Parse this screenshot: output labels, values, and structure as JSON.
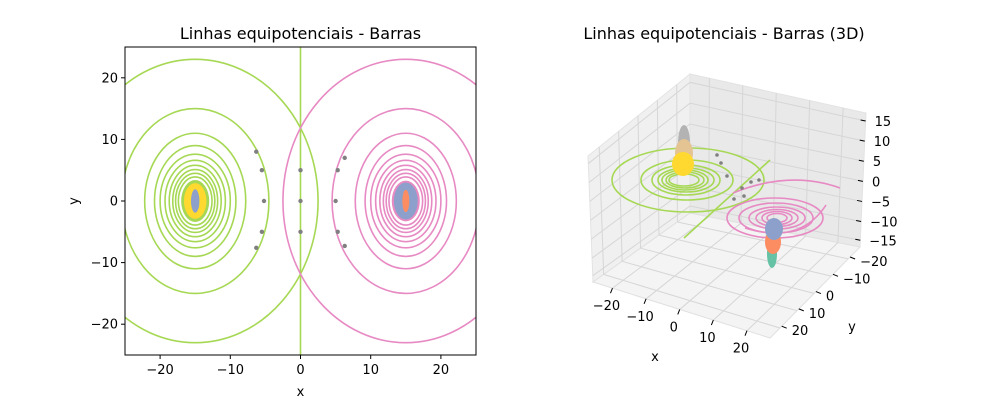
{
  "colors": {
    "left_bar": "#a6d854",
    "right_bar": "#e78ac3",
    "inner_left": "#ffd92f",
    "inner_right": "#8da0cb",
    "grey": "#808080",
    "pane": "#f2f2f2",
    "pane_grid": "#d9d9d9"
  },
  "chart_data": [
    {
      "type": "contour",
      "title": "Linhas equipotenciais - Barras",
      "xlabel": "x",
      "ylabel": "y",
      "xlim": [
        -25,
        25
      ],
      "ylim": [
        -25,
        25
      ],
      "xticks": [
        "−20",
        "−10",
        "0",
        "10",
        "20"
      ],
      "yticks": [
        "−20",
        "−10",
        "0",
        "10",
        "20"
      ],
      "xtick_values": [
        -20,
        -10,
        0,
        10,
        20
      ],
      "ytick_values": [
        -20,
        -10,
        0,
        10,
        20
      ],
      "bars": [
        {
          "center": [
            -15,
            0
          ],
          "color": "#a6d854"
        },
        {
          "center": [
            15,
            0
          ],
          "color": "#e78ac3"
        }
      ],
      "contour_ellipses_left": [
        {
          "a": 17.5,
          "b": 23
        },
        {
          "a": 10.5,
          "b": 15
        },
        {
          "a": 7.2,
          "b": 11
        },
        {
          "a": 5.8,
          "b": 9
        },
        {
          "a": 5.0,
          "b": 7.6
        },
        {
          "a": 4.3,
          "b": 6.6
        },
        {
          "a": 3.7,
          "b": 5.8
        },
        {
          "a": 3.2,
          "b": 5.1
        },
        {
          "a": 2.8,
          "b": 4.5
        },
        {
          "a": 2.4,
          "b": 3.9
        }
      ],
      "contour_ellipses_right": [
        {
          "a": 17.5,
          "b": 23
        },
        {
          "a": 10.5,
          "b": 15
        },
        {
          "a": 7.2,
          "b": 11
        },
        {
          "a": 5.8,
          "b": 9
        },
        {
          "a": 5.0,
          "b": 7.6
        },
        {
          "a": 4.3,
          "b": 6.6
        },
        {
          "a": 3.7,
          "b": 5.8
        },
        {
          "a": 3.2,
          "b": 5.1
        },
        {
          "a": 2.8,
          "b": 4.5
        },
        {
          "a": 2.4,
          "b": 3.9
        }
      ],
      "grey_points": [
        [
          -6.3,
          8
        ],
        [
          -5.5,
          5
        ],
        [
          -5.2,
          0
        ],
        [
          -5.5,
          -5
        ],
        [
          -6.3,
          -7.6
        ],
        [
          0,
          5
        ],
        [
          0,
          0
        ],
        [
          0,
          -5
        ],
        [
          6.3,
          7
        ],
        [
          5.3,
          5
        ],
        [
          5.0,
          0
        ],
        [
          5.3,
          -5
        ],
        [
          6.3,
          -7.3
        ]
      ]
    },
    {
      "type": "3d-contour",
      "title": "Linhas equipotenciais - Barras (3D)",
      "xlabel": "x",
      "ylabel": "y",
      "xticks": [
        "−20",
        "−10",
        "0",
        "10",
        "20"
      ],
      "yticks": [
        "−20",
        "−10",
        "0",
        "10",
        "20"
      ],
      "zticks": [
        "15",
        "10",
        "5",
        "0",
        "−5",
        "−10",
        "−15"
      ],
      "xtick_values": [
        -20,
        -10,
        0,
        10,
        20
      ],
      "ytick_values": [
        20,
        10,
        0,
        -10,
        -20
      ],
      "ztick_values": [
        15,
        10,
        5,
        0,
        -5,
        -10,
        -15
      ]
    }
  ]
}
